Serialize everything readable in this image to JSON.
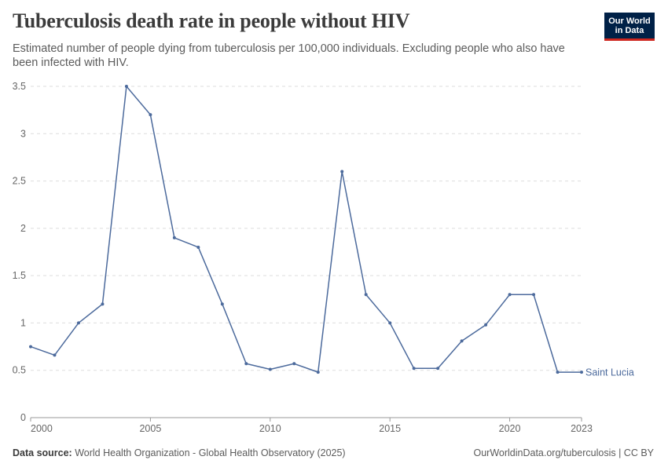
{
  "header": {
    "title": "Tuberculosis death rate in people without HIV",
    "subtitle": "Estimated number of people dying from tuberculosis per 100,000 individuals. Excluding people who also have been infected with HIV."
  },
  "logo": {
    "line1": "Our World",
    "line2": "in Data"
  },
  "footer": {
    "source_label": "Data source:",
    "source_text": "World Health Organization - Global Health Observatory (2025)",
    "credit": "OurWorldinData.org/tuberculosis | CC BY"
  },
  "colors": {
    "series": "#4c6a9c",
    "grid": "#dddddd",
    "axis_text": "#666666",
    "brand": "#002147",
    "brand_accent": "#ce261e"
  },
  "chart_data": {
    "type": "line",
    "title": "Tuberculosis death rate in people without HIV",
    "xlabel": "",
    "ylabel": "",
    "xlim": [
      2000,
      2023
    ],
    "ylim": [
      0,
      3.5
    ],
    "x_ticks": [
      2000,
      2005,
      2010,
      2015,
      2020,
      2023
    ],
    "y_ticks": [
      0,
      0.5,
      1,
      1.5,
      2,
      2.5,
      3,
      3.5
    ],
    "y_tick_labels": [
      "0",
      "0.5",
      "1",
      "1.5",
      "2",
      "2.5",
      "3",
      "3.5"
    ],
    "grid": "horizontal dashed",
    "series": [
      {
        "name": "Saint Lucia",
        "x": [
          2000,
          2001,
          2002,
          2003,
          2004,
          2005,
          2006,
          2007,
          2008,
          2009,
          2010,
          2011,
          2012,
          2013,
          2014,
          2015,
          2016,
          2017,
          2018,
          2019,
          2020,
          2021,
          2022,
          2023
        ],
        "values": [
          0.75,
          0.66,
          1.0,
          1.2,
          3.5,
          3.2,
          1.9,
          1.8,
          1.2,
          0.57,
          0.51,
          0.57,
          0.48,
          2.6,
          1.3,
          1.0,
          0.52,
          0.52,
          0.81,
          0.98,
          1.3,
          1.3,
          0.48,
          0.48
        ]
      }
    ]
  }
}
